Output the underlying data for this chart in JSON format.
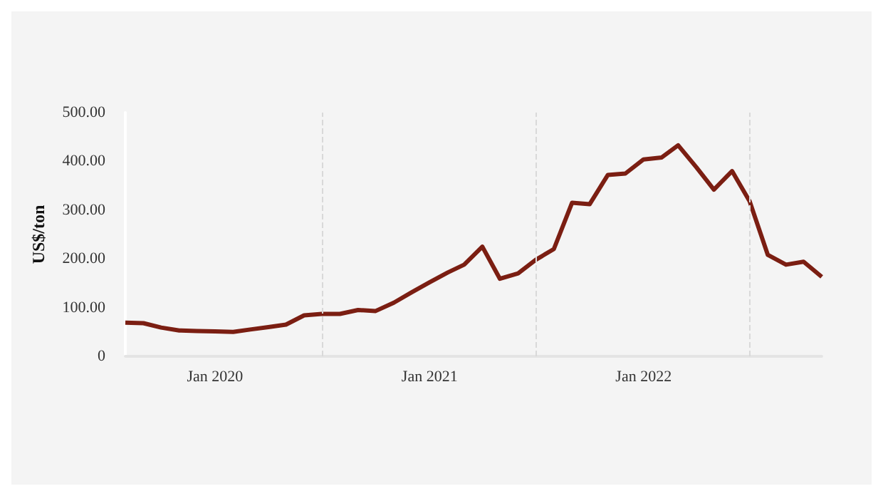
{
  "chart_data": {
    "type": "line",
    "ylabel": "US$/ton",
    "x": [
      "2019-08",
      "2019-09",
      "2019-10",
      "2019-11",
      "2019-12",
      "2020-01",
      "2020-02",
      "2020-03",
      "2020-04",
      "2020-05",
      "2020-06",
      "2020-07",
      "2020-08",
      "2020-09",
      "2020-10",
      "2020-11",
      "2020-12",
      "2021-01",
      "2021-02",
      "2021-03",
      "2021-04",
      "2021-05",
      "2021-06",
      "2021-07",
      "2021-08",
      "2021-09",
      "2021-10",
      "2021-11",
      "2021-12",
      "2022-01",
      "2022-02",
      "2022-03",
      "2022-04",
      "2022-05",
      "2022-06",
      "2022-07",
      "2022-08",
      "2022-09",
      "2022-10",
      "2022-11"
    ],
    "series": [
      {
        "color": "#7b1e12",
        "values": [
          69,
          68,
          59,
          53,
          52,
          51,
          50,
          55,
          60,
          65,
          84,
          87,
          87,
          95,
          93,
          110,
          131,
          152,
          172,
          188,
          225,
          159,
          170,
          198,
          220,
          315,
          312,
          372,
          375,
          404,
          408,
          433,
          388,
          342,
          380,
          318,
          208,
          188,
          194,
          163
        ]
      }
    ],
    "xlim": [
      "2019-08",
      "2022-11"
    ],
    "xticks": [
      {
        "value": "2020-01",
        "label": "Jan 2020"
      },
      {
        "value": "2021-01",
        "label": "Jan 2021"
      },
      {
        "value": "2022-01",
        "label": "Jan 2022"
      }
    ],
    "ylim": [
      0,
      500
    ],
    "yticks": [
      {
        "value": 0,
        "label": "0"
      },
      {
        "value": 100,
        "label": "100.00"
      },
      {
        "value": 200,
        "label": "200.00"
      },
      {
        "value": 300,
        "label": "300.00"
      },
      {
        "value": 400,
        "label": "400.00"
      },
      {
        "value": 500,
        "label": "500.00"
      }
    ],
    "ref_lines": [
      {
        "axis": "x",
        "value": "2020-07",
        "color": "#d9d9d9",
        "line_style": "dashed"
      },
      {
        "axis": "x",
        "value": "2021-07",
        "color": "#d9d9d9",
        "line_style": "dashed"
      },
      {
        "axis": "x",
        "value": "2022-07",
        "color": "#d9d9d9",
        "line_style": "dashed"
      }
    ],
    "grid": false,
    "marker": "none",
    "line_style": "solid"
  }
}
